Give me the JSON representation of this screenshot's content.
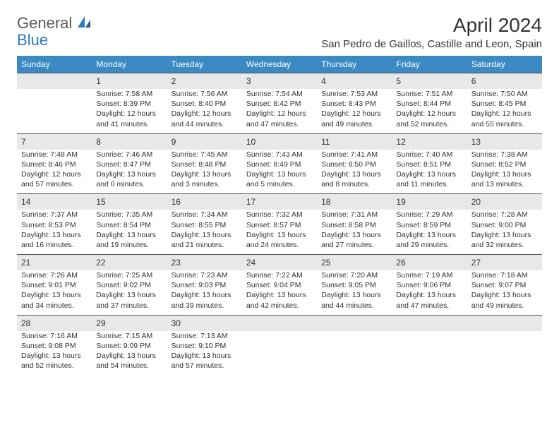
{
  "logo": {
    "textA": "General",
    "textB": "Blue"
  },
  "title": "April 2024",
  "location": "San Pedro de Gaillos, Castille and Leon, Spain",
  "colors": {
    "headerBg": "#3b8ac4",
    "numRowBg": "#e8e8e8",
    "borderTop": "#555555",
    "text": "#333333"
  },
  "dayNames": [
    "Sunday",
    "Monday",
    "Tuesday",
    "Wednesday",
    "Thursday",
    "Friday",
    "Saturday"
  ],
  "weeks": [
    [
      null,
      {
        "n": "1",
        "sr": "7:58 AM",
        "ss": "8:39 PM",
        "dl": "12 hours and 41 minutes."
      },
      {
        "n": "2",
        "sr": "7:56 AM",
        "ss": "8:40 PM",
        "dl": "12 hours and 44 minutes."
      },
      {
        "n": "3",
        "sr": "7:54 AM",
        "ss": "8:42 PM",
        "dl": "12 hours and 47 minutes."
      },
      {
        "n": "4",
        "sr": "7:53 AM",
        "ss": "8:43 PM",
        "dl": "12 hours and 49 minutes."
      },
      {
        "n": "5",
        "sr": "7:51 AM",
        "ss": "8:44 PM",
        "dl": "12 hours and 52 minutes."
      },
      {
        "n": "6",
        "sr": "7:50 AM",
        "ss": "8:45 PM",
        "dl": "12 hours and 55 minutes."
      }
    ],
    [
      {
        "n": "7",
        "sr": "7:48 AM",
        "ss": "8:46 PM",
        "dl": "12 hours and 57 minutes."
      },
      {
        "n": "8",
        "sr": "7:46 AM",
        "ss": "8:47 PM",
        "dl": "13 hours and 0 minutes."
      },
      {
        "n": "9",
        "sr": "7:45 AM",
        "ss": "8:48 PM",
        "dl": "13 hours and 3 minutes."
      },
      {
        "n": "10",
        "sr": "7:43 AM",
        "ss": "8:49 PM",
        "dl": "13 hours and 5 minutes."
      },
      {
        "n": "11",
        "sr": "7:41 AM",
        "ss": "8:50 PM",
        "dl": "13 hours and 8 minutes."
      },
      {
        "n": "12",
        "sr": "7:40 AM",
        "ss": "8:51 PM",
        "dl": "13 hours and 11 minutes."
      },
      {
        "n": "13",
        "sr": "7:38 AM",
        "ss": "8:52 PM",
        "dl": "13 hours and 13 minutes."
      }
    ],
    [
      {
        "n": "14",
        "sr": "7:37 AM",
        "ss": "8:53 PM",
        "dl": "13 hours and 16 minutes."
      },
      {
        "n": "15",
        "sr": "7:35 AM",
        "ss": "8:54 PM",
        "dl": "13 hours and 19 minutes."
      },
      {
        "n": "16",
        "sr": "7:34 AM",
        "ss": "8:55 PM",
        "dl": "13 hours and 21 minutes."
      },
      {
        "n": "17",
        "sr": "7:32 AM",
        "ss": "8:57 PM",
        "dl": "13 hours and 24 minutes."
      },
      {
        "n": "18",
        "sr": "7:31 AM",
        "ss": "8:58 PM",
        "dl": "13 hours and 27 minutes."
      },
      {
        "n": "19",
        "sr": "7:29 AM",
        "ss": "8:59 PM",
        "dl": "13 hours and 29 minutes."
      },
      {
        "n": "20",
        "sr": "7:28 AM",
        "ss": "9:00 PM",
        "dl": "13 hours and 32 minutes."
      }
    ],
    [
      {
        "n": "21",
        "sr": "7:26 AM",
        "ss": "9:01 PM",
        "dl": "13 hours and 34 minutes."
      },
      {
        "n": "22",
        "sr": "7:25 AM",
        "ss": "9:02 PM",
        "dl": "13 hours and 37 minutes."
      },
      {
        "n": "23",
        "sr": "7:23 AM",
        "ss": "9:03 PM",
        "dl": "13 hours and 39 minutes."
      },
      {
        "n": "24",
        "sr": "7:22 AM",
        "ss": "9:04 PM",
        "dl": "13 hours and 42 minutes."
      },
      {
        "n": "25",
        "sr": "7:20 AM",
        "ss": "9:05 PM",
        "dl": "13 hours and 44 minutes."
      },
      {
        "n": "26",
        "sr": "7:19 AM",
        "ss": "9:06 PM",
        "dl": "13 hours and 47 minutes."
      },
      {
        "n": "27",
        "sr": "7:18 AM",
        "ss": "9:07 PM",
        "dl": "13 hours and 49 minutes."
      }
    ],
    [
      {
        "n": "28",
        "sr": "7:16 AM",
        "ss": "9:08 PM",
        "dl": "13 hours and 52 minutes."
      },
      {
        "n": "29",
        "sr": "7:15 AM",
        "ss": "9:09 PM",
        "dl": "13 hours and 54 minutes."
      },
      {
        "n": "30",
        "sr": "7:13 AM",
        "ss": "9:10 PM",
        "dl": "13 hours and 57 minutes."
      },
      null,
      null,
      null,
      null
    ]
  ],
  "labels": {
    "sunrise": "Sunrise:",
    "sunset": "Sunset:",
    "daylight": "Daylight:"
  }
}
